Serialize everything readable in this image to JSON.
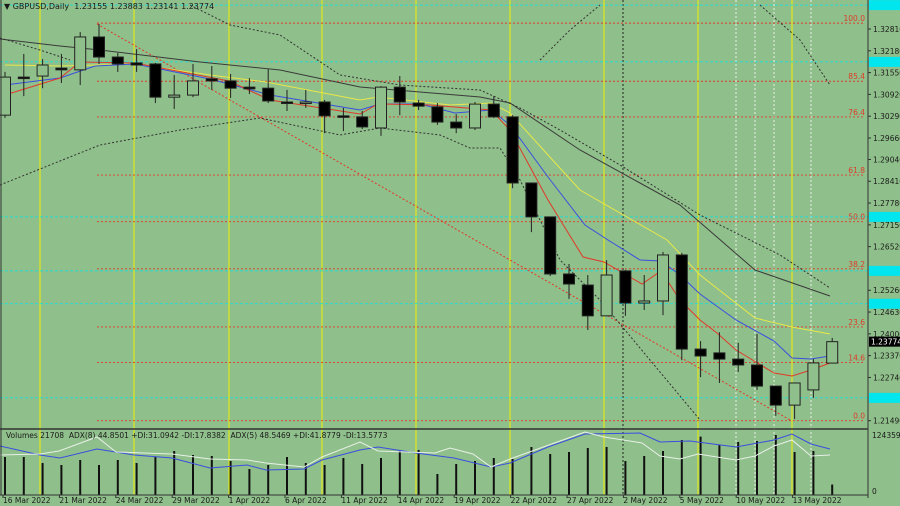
{
  "header": {
    "symbol": "GBPUSD,Daily",
    "ohlc": "1.23155 1.23883 1.23141 1.23774"
  },
  "indicator_pane": {
    "label": "Volumes 21708  ADX(8) 44.8501 +DI:31.0942 -DI:17.8382  ADX(5) 48.5469 +DI:41.8779 -DI:13.5773",
    "axis_max": "124359",
    "axis_min": "0"
  },
  "colors": {
    "background": "#8fbf8a",
    "bull_candle": "#8fbf8a",
    "bear_candle": "#000000",
    "ma_fast": "#e03a2a",
    "ma_mid": "#3a4fe0",
    "ma_slow": "#e8e84a",
    "ma_long": "#3a3a3a",
    "fib_levels": "#e03a2a",
    "cyan_levels": "#00e5ee",
    "period_separator": "#f0f000"
  },
  "chart_data": {
    "type": "candlestick",
    "title": "GBPUSD,Daily",
    "ylim": [
      1.211,
      1.335
    ],
    "y_tick_labels": [
      "1.32810",
      "1.32180",
      "1.31550",
      "1.30920",
      "1.30290",
      "1.29660",
      "1.29040",
      "1.28410",
      "1.27780",
      "1.27150",
      "1.26520",
      "1.25260",
      "1.24630",
      "1.24000",
      "1.23370",
      "1.22740",
      "1.21490"
    ],
    "current_price": "1.23774",
    "x_tick_labels": [
      "16 Mar 2022",
      "21 Mar 2022",
      "24 Mar 2022",
      "29 Mar 2022",
      "1 Apr 2022",
      "6 Apr 2022",
      "11 Apr 2022",
      "14 Apr 2022",
      "19 Apr 2022",
      "22 Apr 2022",
      "27 Apr 2022",
      "2 May 2022",
      "5 May 2022",
      "10 May 2022",
      "13 May 2022"
    ],
    "candles_ohlc": [
      [
        1.3032,
        1.3157,
        1.3024,
        1.3142
      ],
      [
        1.3142,
        1.3209,
        1.3087,
        1.3139
      ],
      [
        1.3145,
        1.3194,
        1.311,
        1.3177
      ],
      [
        1.3168,
        1.3209,
        1.3125,
        1.3163
      ],
      [
        1.3163,
        1.3272,
        1.3119,
        1.3258
      ],
      [
        1.3258,
        1.3295,
        1.318,
        1.32
      ],
      [
        1.32,
        1.3212,
        1.3157,
        1.318
      ],
      [
        1.3183,
        1.3223,
        1.3157,
        1.3177
      ],
      [
        1.318,
        1.3183,
        1.3067,
        1.3084
      ],
      [
        1.3084,
        1.3148,
        1.305,
        1.309
      ],
      [
        1.309,
        1.318,
        1.3084,
        1.3131
      ],
      [
        1.3137,
        1.3174,
        1.3105,
        1.3131
      ],
      [
        1.3131,
        1.3151,
        1.3082,
        1.311
      ],
      [
        1.3113,
        1.3139,
        1.3093,
        1.3108
      ],
      [
        1.311,
        1.3165,
        1.3067,
        1.3073
      ],
      [
        1.307,
        1.3105,
        1.3044,
        1.3067
      ],
      [
        1.3067,
        1.3105,
        1.3053,
        1.307
      ],
      [
        1.307,
        1.3076,
        1.298,
        1.303
      ],
      [
        1.303,
        1.3053,
        1.2986,
        1.3027
      ],
      [
        1.3027,
        1.3044,
        1.2992,
        1.2998
      ],
      [
        1.2995,
        1.3116,
        1.2972,
        1.3113
      ],
      [
        1.3113,
        1.3145,
        1.3032,
        1.307
      ],
      [
        1.3067,
        1.3076,
        1.3047,
        1.3058
      ],
      [
        1.3056,
        1.3067,
        1.3004,
        1.3012
      ],
      [
        1.3012,
        1.3035,
        1.298,
        1.2995
      ],
      [
        1.2995,
        1.307,
        1.2989,
        1.3064
      ],
      [
        1.3064,
        1.3087,
        1.3024,
        1.3027
      ],
      [
        1.3027,
        1.3032,
        1.2821,
        1.2836
      ],
      [
        1.2836,
        1.2836,
        1.2694,
        1.2738
      ],
      [
        1.2738,
        1.2738,
        1.2567,
        1.2573
      ],
      [
        1.2573,
        1.2602,
        1.2501,
        1.2544
      ],
      [
        1.2541,
        1.257,
        1.2411,
        1.2452
      ],
      [
        1.2452,
        1.2613,
        1.2452,
        1.257
      ],
      [
        1.2582,
        1.2585,
        1.2452,
        1.2489
      ],
      [
        1.2489,
        1.257,
        1.2469,
        1.2495
      ],
      [
        1.2495,
        1.2637,
        1.2454,
        1.2628
      ],
      [
        1.2628,
        1.2634,
        1.2324,
        1.2356
      ],
      [
        1.2356,
        1.2379,
        1.2275,
        1.2336
      ],
      [
        1.2345,
        1.2405,
        1.2258,
        1.2327
      ],
      [
        1.2327,
        1.2374,
        1.229,
        1.231
      ],
      [
        1.231,
        1.24,
        1.2238,
        1.2249
      ],
      [
        1.2249,
        1.2249,
        1.2163,
        1.2194
      ],
      [
        1.2194,
        1.2258,
        1.2154,
        1.2258
      ],
      [
        1.2238,
        1.2327,
        1.2215,
        1.2316
      ],
      [
        1.23155,
        1.23883,
        1.23141,
        1.23774
      ]
    ],
    "volumes": [
      78774,
      78774,
      66336,
      62190,
      72555,
      62190,
      72555,
      66336,
      78774,
      91212,
      82920,
      80847,
      70482,
      53898,
      62190,
      78774,
      66336,
      62190,
      76701,
      64263,
      76701,
      93285,
      93285,
      43533,
      64263,
      70482,
      76701,
      74628,
      99504,
      84993,
      89139,
      97431,
      99504,
      70482,
      80847,
      91212,
      114015,
      121000,
      103650,
      109869,
      111942,
      124359,
      89139,
      91212,
      21708
    ],
    "fib_levels": [
      {
        "label": "100.0",
        "price": 1.3298
      },
      {
        "label": "85.4",
        "price": 1.313
      },
      {
        "label": "76.4",
        "price": 1.3027
      },
      {
        "label": "61.8",
        "price": 1.2859
      },
      {
        "label": "50.0",
        "price": 1.2724
      },
      {
        "label": "38.2",
        "price": 1.2588
      },
      {
        "label": "23.6",
        "price": 1.242
      },
      {
        "label": "14.6",
        "price": 1.2317
      },
      {
        "label": "0.0",
        "price": 1.2149
      }
    ],
    "cyan_levels": [
      1.335,
      1.3186,
      1.2738,
      1.2582,
      1.2487,
      1.2215
    ],
    "grid": false
  }
}
